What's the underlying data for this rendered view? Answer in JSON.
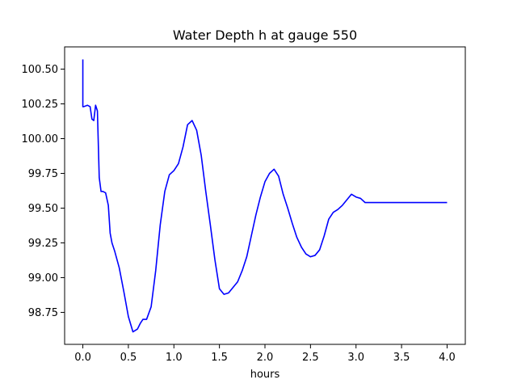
{
  "chart_data": {
    "type": "line",
    "title": "Water Depth h at gauge 550",
    "xlabel": "hours",
    "ylabel": "",
    "xlim": [
      -0.2,
      4.2
    ],
    "ylim": [
      98.52,
      100.66
    ],
    "grid": false,
    "xticks": [
      0.0,
      0.5,
      1.0,
      1.5,
      2.0,
      2.5,
      3.0,
      3.5,
      4.0
    ],
    "xtick_labels": [
      "0.0",
      "0.5",
      "1.0",
      "1.5",
      "2.0",
      "2.5",
      "3.0",
      "3.5",
      "4.0"
    ],
    "yticks": [
      98.75,
      99.0,
      99.25,
      99.5,
      99.75,
      100.0,
      100.25,
      100.5
    ],
    "ytick_labels": [
      "98.75",
      "99.00",
      "99.25",
      "99.50",
      "99.75",
      "100.00",
      "100.25",
      "100.50"
    ],
    "series": [
      {
        "color": "#0000ff",
        "x": [
          0.0,
          0.0,
          0.01,
          0.05,
          0.08,
          0.1,
          0.12,
          0.14,
          0.16,
          0.18,
          0.2,
          0.22,
          0.25,
          0.28,
          0.3,
          0.32,
          0.35,
          0.4,
          0.45,
          0.5,
          0.55,
          0.6,
          0.63,
          0.66,
          0.7,
          0.75,
          0.8,
          0.85,
          0.9,
          0.95,
          1.0,
          1.05,
          1.1,
          1.15,
          1.2,
          1.25,
          1.3,
          1.35,
          1.4,
          1.45,
          1.5,
          1.55,
          1.6,
          1.65,
          1.7,
          1.75,
          1.8,
          1.85,
          1.9,
          1.95,
          2.0,
          2.05,
          2.1,
          2.15,
          2.2,
          2.25,
          2.3,
          2.35,
          2.4,
          2.45,
          2.5,
          2.55,
          2.6,
          2.65,
          2.7,
          2.75,
          2.8,
          2.85,
          2.9,
          2.95,
          3.0,
          3.05,
          3.1,
          3.15,
          3.2,
          3.25,
          3.3,
          3.35,
          3.4,
          3.45,
          3.5,
          3.55,
          3.6,
          3.65,
          3.7,
          3.75,
          3.8,
          3.85,
          3.9,
          3.95,
          4.0
        ],
        "y": [
          100.57,
          100.23,
          100.23,
          100.24,
          100.23,
          100.14,
          100.13,
          100.24,
          100.2,
          99.72,
          99.62,
          99.62,
          99.61,
          99.52,
          99.32,
          99.25,
          99.19,
          99.07,
          98.9,
          98.72,
          98.61,
          98.63,
          98.67,
          98.7,
          98.7,
          98.79,
          99.05,
          99.38,
          99.62,
          99.74,
          99.77,
          99.82,
          99.94,
          100.1,
          100.13,
          100.06,
          99.88,
          99.62,
          99.38,
          99.13,
          98.92,
          98.88,
          98.89,
          98.93,
          98.97,
          99.05,
          99.15,
          99.3,
          99.45,
          99.58,
          99.69,
          99.75,
          99.78,
          99.73,
          99.6,
          99.5,
          99.39,
          99.29,
          99.22,
          99.17,
          99.15,
          99.16,
          99.2,
          99.3,
          99.42,
          99.47,
          99.49,
          99.52,
          99.56,
          99.6,
          99.58,
          99.57,
          99.54,
          99.54,
          99.54,
          99.54,
          99.54,
          99.54,
          99.54,
          99.54,
          99.54,
          99.54,
          99.54,
          99.54,
          99.54,
          99.54,
          99.54,
          99.54,
          99.54,
          99.54,
          99.54
        ]
      }
    ]
  }
}
